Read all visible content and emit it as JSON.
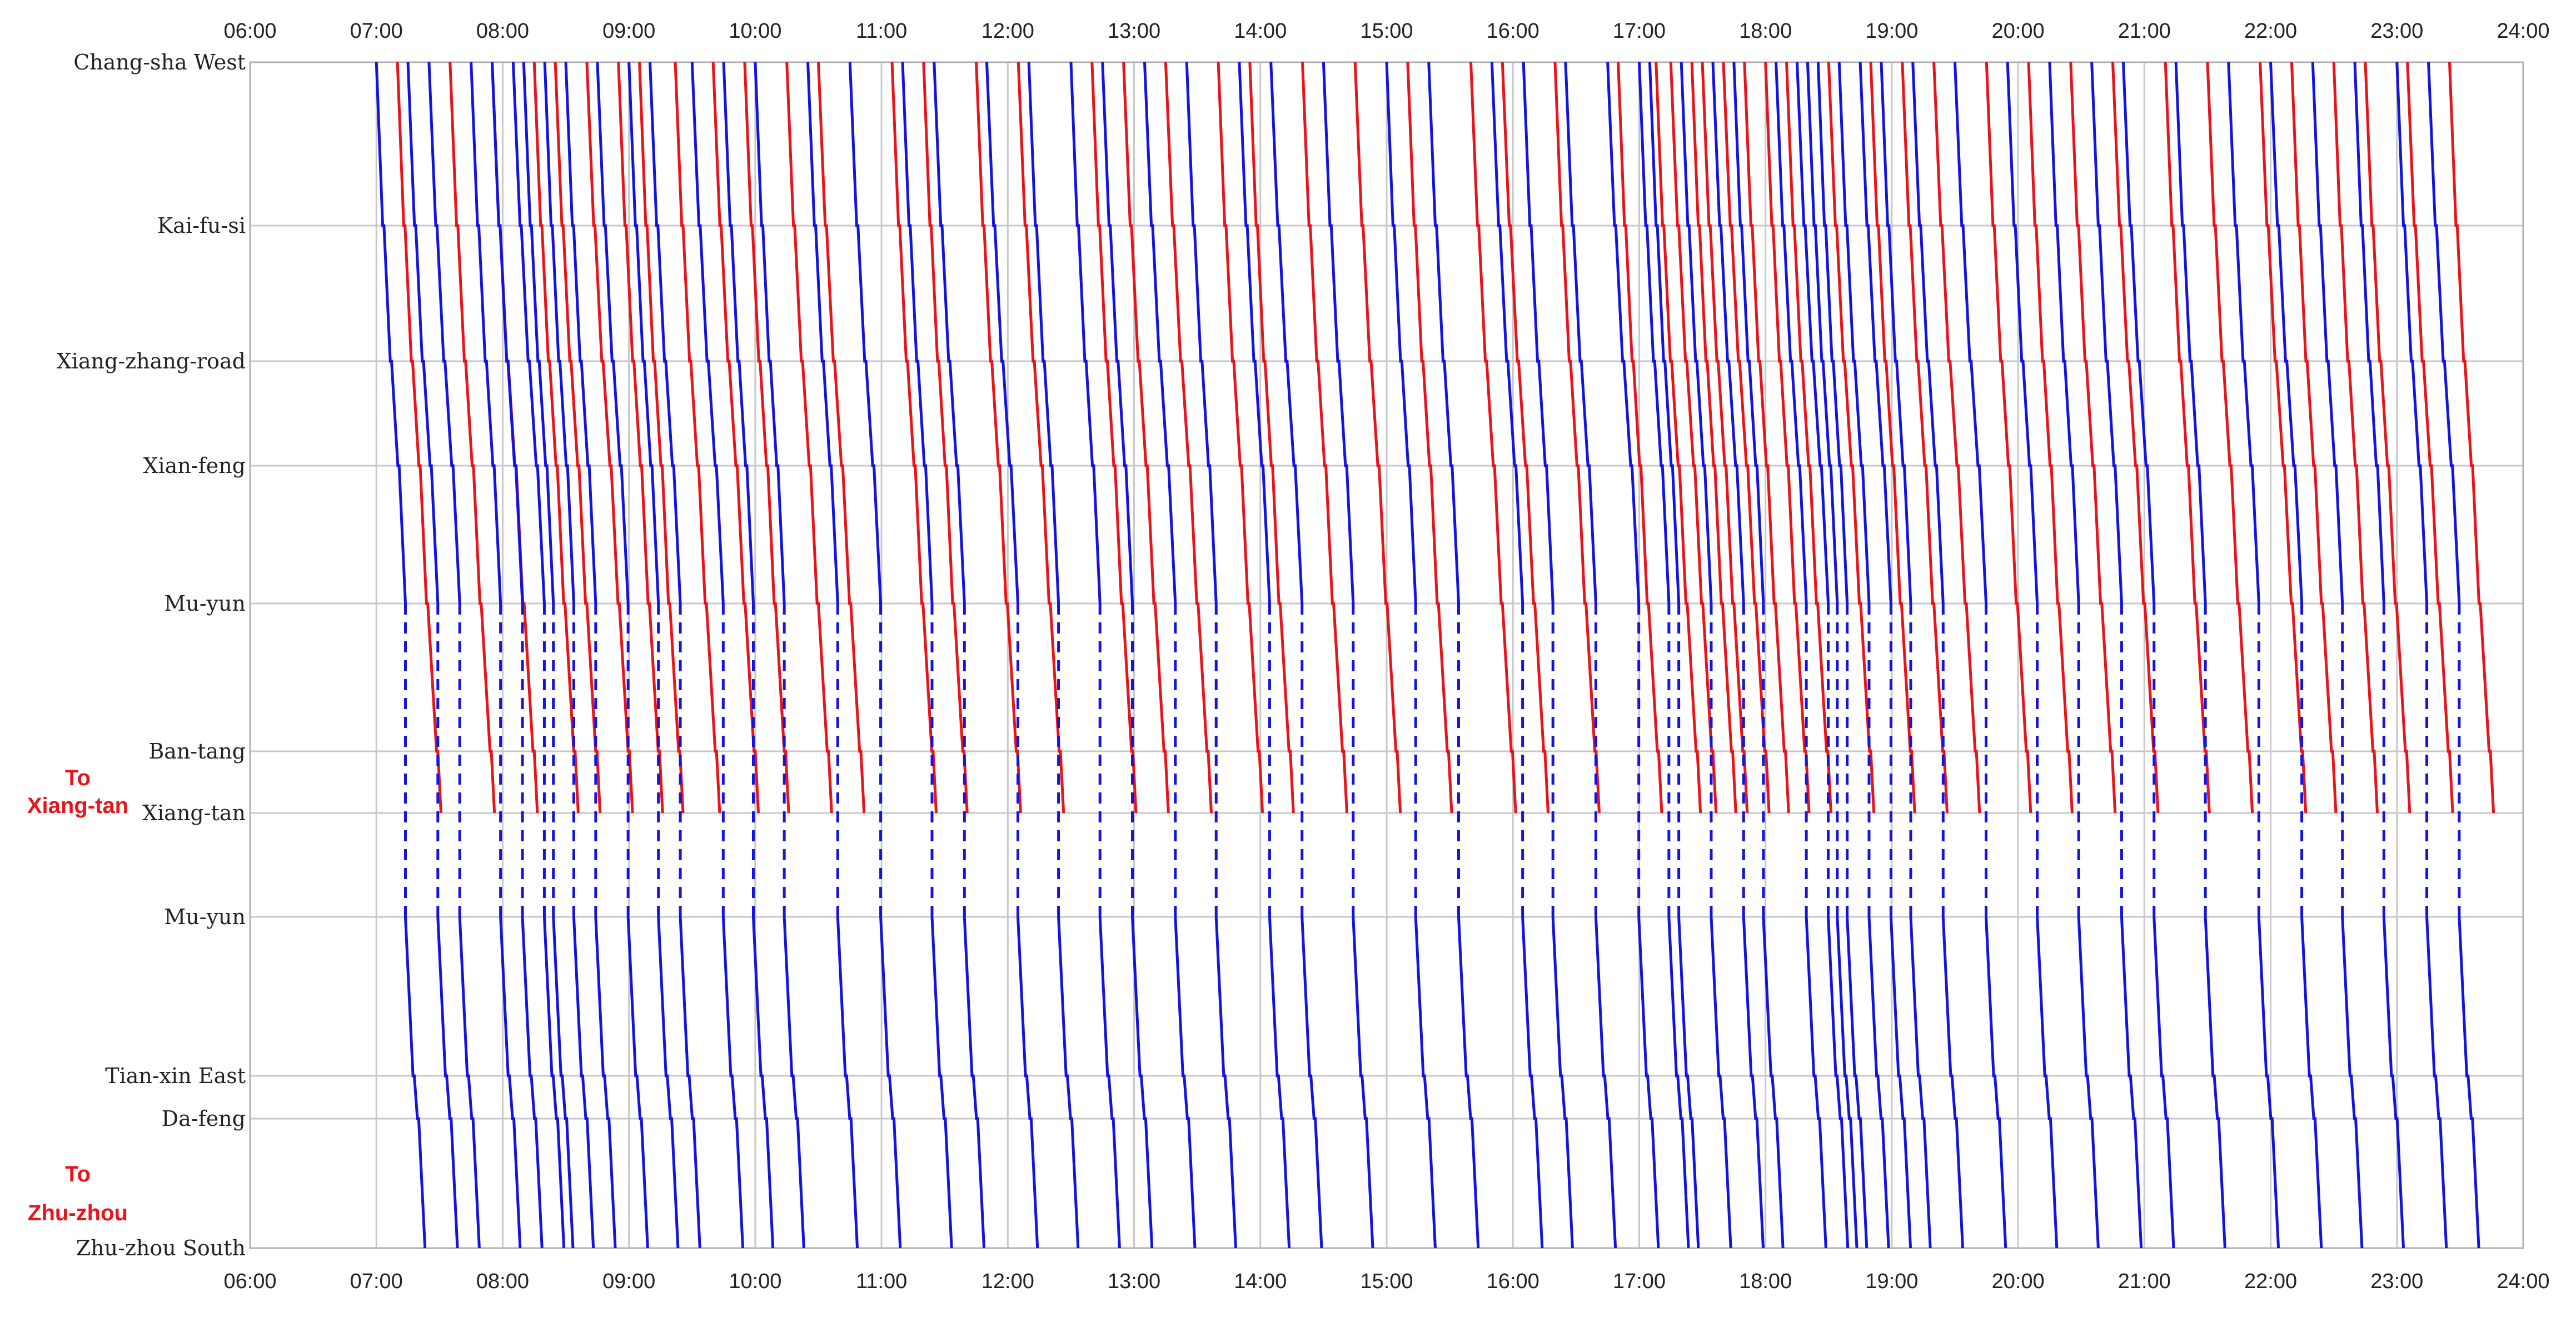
{
  "chart_data": {
    "type": "line",
    "x_ticks": [
      "06:00",
      "07:00",
      "08:00",
      "09:00",
      "10:00",
      "11:00",
      "12:00",
      "13:00",
      "14:00",
      "15:00",
      "16:00",
      "17:00",
      "18:00",
      "19:00",
      "20:00",
      "21:00",
      "22:00",
      "23:00",
      "24:00"
    ],
    "x_range_hours": [
      6,
      24
    ],
    "grid": true,
    "stations": [
      "Chang-sha West",
      "Kai-fu-si",
      "Xiang-zhang-road",
      "Xian-feng",
      "Mu-yun",
      "Ban-tang",
      "Xiang-tan",
      "Mu-yun",
      "Tian-xin East",
      "Da-feng",
      "Zhu-zhou South"
    ],
    "direction_labels": [
      {
        "line1": "To",
        "line2": "Xiang-tan"
      },
      {
        "line1": "To",
        "line2": "Zhu-zhou"
      }
    ],
    "series": [
      {
        "branch": "Xiang-tan",
        "color": "#e8141a",
        "departures": [
          "07:10",
          "07:35",
          "07:55",
          "08:15",
          "08:25",
          "08:40",
          "08:55",
          "09:05",
          "09:22",
          "09:40",
          "09:55",
          "10:15",
          "10:30",
          "11:05",
          "11:20",
          "11:45",
          "12:05",
          "12:40",
          "12:55",
          "13:15",
          "13:40",
          "13:55",
          "14:20",
          "14:45",
          "15:10",
          "15:40",
          "15:55",
          "16:20",
          "16:50",
          "17:08",
          "17:15",
          "17:25",
          "17:30",
          "17:40",
          "17:50",
          "18:00",
          "18:10",
          "18:30",
          "18:50",
          "19:05",
          "19:20",
          "19:45",
          "20:05",
          "20:25",
          "20:45",
          "21:10",
          "21:30",
          "21:55",
          "22:10",
          "22:30",
          "22:45",
          "23:05",
          "23:25"
        ]
      },
      {
        "branch": "Zhu-zhou",
        "color": "#1414e0",
        "departures": [
          "07:00",
          "07:15",
          "07:25",
          "07:45",
          "07:55",
          "08:05",
          "08:10",
          "08:20",
          "08:30",
          "08:45",
          "09:00",
          "09:10",
          "09:30",
          "09:45",
          "10:00",
          "10:25",
          "10:45",
          "11:10",
          "11:25",
          "11:50",
          "12:10",
          "12:30",
          "12:45",
          "13:05",
          "13:25",
          "13:50",
          "14:05",
          "14:30",
          "15:00",
          "15:20",
          "15:50",
          "16:05",
          "16:25",
          "16:45",
          "17:00",
          "17:05",
          "17:20",
          "17:35",
          "17:45",
          "18:05",
          "18:15",
          "18:20",
          "18:25",
          "18:35",
          "18:45",
          "18:55",
          "19:10",
          "19:30",
          "19:55",
          "20:15",
          "20:35",
          "20:50",
          "21:15",
          "21:40",
          "22:00",
          "22:20",
          "22:40",
          "23:00",
          "23:15"
        ]
      }
    ]
  }
}
